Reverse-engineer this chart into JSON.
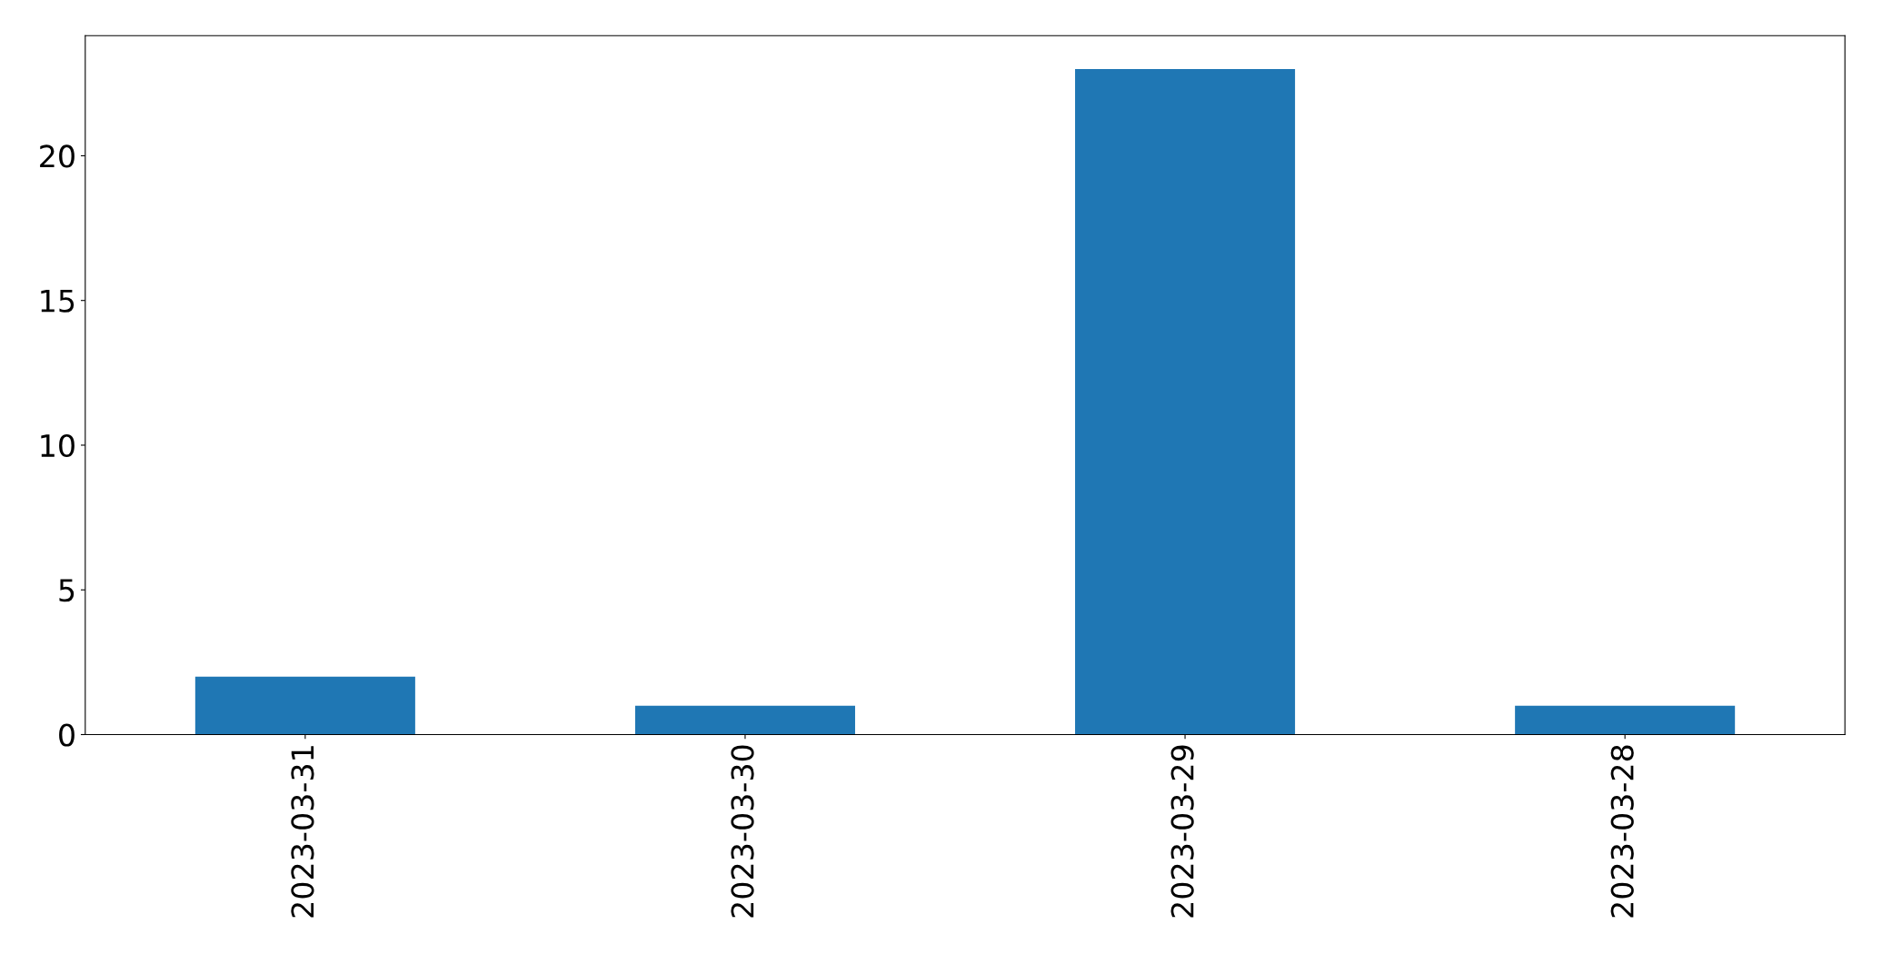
{
  "chart_data": {
    "type": "bar",
    "categories": [
      "2023-03-31",
      "2023-03-30",
      "2023-03-29",
      "2023-03-28"
    ],
    "values": [
      2,
      1,
      23,
      1
    ],
    "color": "#1f77b4",
    "ylim": [
      0,
      24.15
    ],
    "yticks": [
      0,
      5,
      10,
      15,
      20
    ],
    "grid": false,
    "legend": false
  }
}
